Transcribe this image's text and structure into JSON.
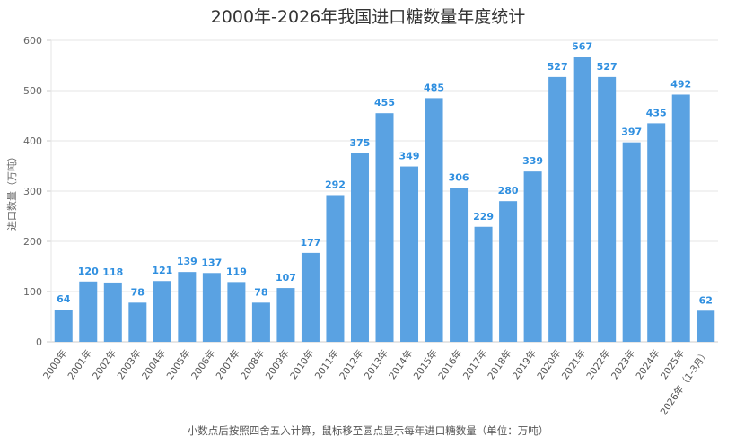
{
  "chart_data": {
    "type": "bar",
    "title": "2000年-2026年我国进口糖数量年度统计",
    "ylabel": "进口数量（万吨）",
    "xlabel": "",
    "footnote": "小数点后按照四舍五入计算，鼠标移至圆点显示每年进口糖数量（单位：万吨）",
    "ylim": [
      0,
      600
    ],
    "yticks": [
      0,
      100,
      200,
      300,
      400,
      500,
      600
    ],
    "grid": true,
    "bar_color": "#5aa2e2",
    "label_color": "#2f8fe0",
    "categories": [
      "2000年",
      "2001年",
      "2002年",
      "2003年",
      "2004年",
      "2005年",
      "2006年",
      "2007年",
      "2008年",
      "2009年",
      "2010年",
      "2011年",
      "2012年",
      "2013年",
      "2014年",
      "2015年",
      "2016年",
      "2017年",
      "2018年",
      "2019年",
      "2020年",
      "2021年",
      "2022年",
      "2023年",
      "2024年",
      "2025年",
      "2026年（1-3月）"
    ],
    "values": [
      64,
      120,
      118,
      78,
      121,
      139,
      137,
      119,
      78,
      107,
      177,
      292,
      375,
      455,
      349,
      485,
      306,
      229,
      280,
      339,
      527,
      567,
      527,
      397,
      435,
      492,
      62
    ]
  }
}
